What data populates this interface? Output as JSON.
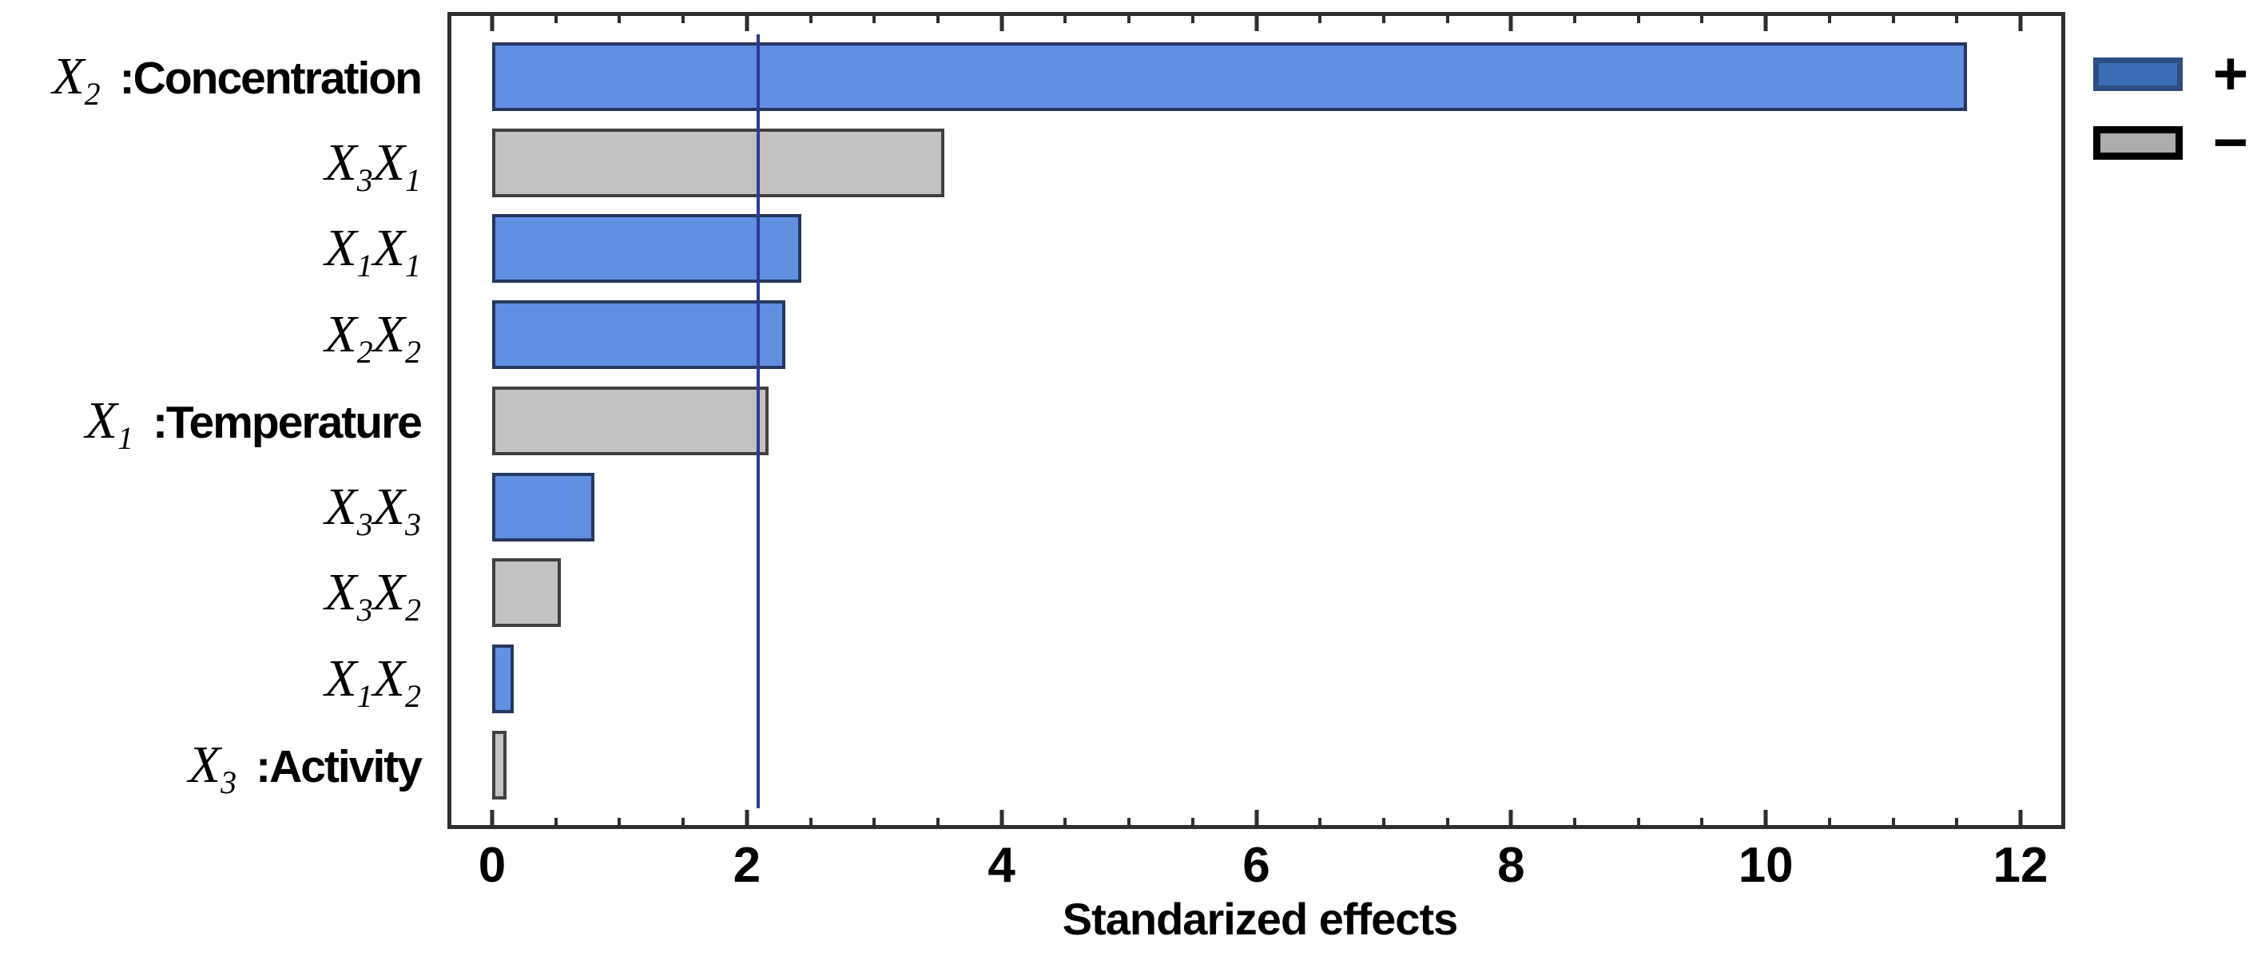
{
  "chart_data": {
    "type": "bar",
    "orientation": "horizontal",
    "title": "",
    "xlabel": "Standarized effects",
    "ylabel": "",
    "xlim": [
      -0.35,
      12.35
    ],
    "xticks": [
      0,
      2,
      4,
      6,
      8,
      10,
      12
    ],
    "minor_tick_step": 0.5,
    "grid": false,
    "reference_line_x": 2.09,
    "legend_position": "outside-top-right",
    "categories": [
      {
        "tokens": [
          {
            "base": "X",
            "sub": "2"
          }
        ],
        "name": ":Concentration"
      },
      {
        "tokens": [
          {
            "base": "X",
            "sub": "3"
          },
          {
            "base": "X",
            "sub": "1"
          }
        ],
        "name": ""
      },
      {
        "tokens": [
          {
            "base": "X",
            "sub": "1"
          },
          {
            "base": "X",
            "sub": "1"
          }
        ],
        "name": ""
      },
      {
        "tokens": [
          {
            "base": "X",
            "sub": "2"
          },
          {
            "base": "X",
            "sub": "2"
          }
        ],
        "name": ""
      },
      {
        "tokens": [
          {
            "base": "X",
            "sub": "1"
          }
        ],
        "name": ":Temperature"
      },
      {
        "tokens": [
          {
            "base": "X",
            "sub": "3"
          },
          {
            "base": "X",
            "sub": "3"
          }
        ],
        "name": ""
      },
      {
        "tokens": [
          {
            "base": "X",
            "sub": "3"
          },
          {
            "base": "X",
            "sub": "2"
          }
        ],
        "name": ""
      },
      {
        "tokens": [
          {
            "base": "X",
            "sub": "1"
          },
          {
            "base": "X",
            "sub": "2"
          }
        ],
        "name": ""
      },
      {
        "tokens": [
          {
            "base": "X",
            "sub": "3"
          }
        ],
        "name": ":Activity"
      }
    ],
    "values": [
      11.58,
      3.55,
      2.43,
      2.3,
      2.17,
      0.8,
      0.54,
      0.17,
      0.11
    ],
    "signs": [
      "+",
      "-",
      "+",
      "+",
      "-",
      "+",
      "-",
      "+",
      "-"
    ],
    "legend": [
      {
        "label": "+"
      },
      {
        "label": "−"
      }
    ],
    "colors": {
      "bar_positive_fill": "#6190E2",
      "bar_positive_border": "#26365F",
      "bar_negative_fill": "#C2C2C2",
      "bar_negative_border": "#3F3F3F",
      "legend_positive_fill": "#3D6EB5",
      "legend_positive_border": "#2E4D80",
      "legend_negative_fill": "#ACACAC",
      "legend_negative_border": "#000000",
      "reference_line": "#2C3A96",
      "axis": "#2E2E2E",
      "text": "#000000"
    }
  }
}
